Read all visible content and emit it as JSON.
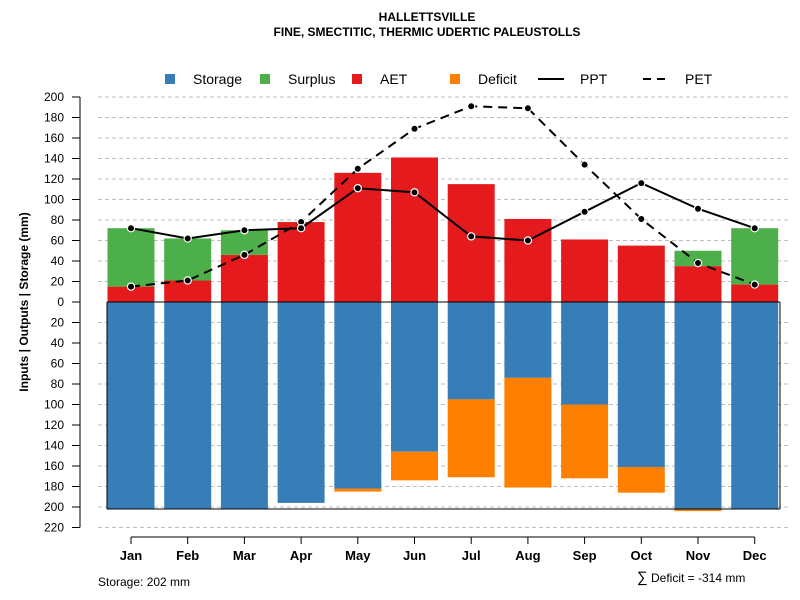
{
  "chart_data": {
    "type": "bar",
    "title": "HALLETTSVILLE",
    "subtitle": "FINE, SMECTITIC, THERMIC UDERTIC PALEUSTOLLS",
    "ylabel": "Inputs | Outputs | Storage     (mm)",
    "categories": [
      "Jan",
      "Feb",
      "Mar",
      "Apr",
      "May",
      "Jun",
      "Jul",
      "Aug",
      "Sep",
      "Oct",
      "Nov",
      "Dec"
    ],
    "yticks_top": [
      "200",
      "180",
      "160",
      "140",
      "120",
      "100",
      "80",
      "60",
      "40",
      "20",
      "0"
    ],
    "yticks_bottom": [
      "20",
      "40",
      "60",
      "80",
      "100",
      "120",
      "140",
      "160",
      "180",
      "200",
      "220"
    ],
    "ylim_top": [
      0,
      200
    ],
    "ylim_bottom": [
      0,
      220
    ],
    "legend": [
      {
        "key": "storage",
        "label": "Storage",
        "kind": "box"
      },
      {
        "key": "surplus",
        "label": "Surplus",
        "kind": "box"
      },
      {
        "key": "aet",
        "label": "AET",
        "kind": "box"
      },
      {
        "key": "deficit",
        "label": "Deficit",
        "kind": "box"
      },
      {
        "key": "ppt",
        "label": "PPT",
        "kind": "solid"
      },
      {
        "key": "pet",
        "label": "PET",
        "kind": "dashed"
      }
    ],
    "colors": {
      "storage": "#377EB8",
      "surplus": "#4DAF4A",
      "aet": "#E41A1C",
      "deficit": "#FF7F00",
      "ppt": "#000000",
      "pet": "#000000"
    },
    "series": [
      {
        "name": "AET",
        "values": [
          15,
          21,
          46,
          78,
          126,
          141,
          115,
          81,
          61,
          55,
          35,
          17
        ]
      },
      {
        "name": "Surplus",
        "values": [
          57,
          41,
          24,
          0,
          0,
          0,
          0,
          0,
          0,
          0,
          15,
          55
        ]
      },
      {
        "name": "Storage",
        "values": [
          202,
          202,
          202,
          196,
          182,
          146,
          95,
          74,
          100,
          161,
          202,
          202
        ]
      },
      {
        "name": "Deficit",
        "values": [
          0,
          0,
          0,
          0,
          3,
          28,
          76,
          107,
          72,
          25,
          2,
          0
        ]
      },
      {
        "name": "PPT",
        "values": [
          72,
          62,
          70,
          72,
          111,
          107,
          64,
          60,
          88,
          116,
          91,
          72
        ]
      },
      {
        "name": "PET",
        "values": [
          15,
          21,
          46,
          78,
          130,
          169,
          191,
          189,
          134,
          81,
          38,
          17
        ]
      }
    ],
    "storage_capacity": 202,
    "storage_note": "Storage: 202 mm",
    "deficit_note_symbol": "∑",
    "deficit_note": "Deficit = -314 mm"
  }
}
